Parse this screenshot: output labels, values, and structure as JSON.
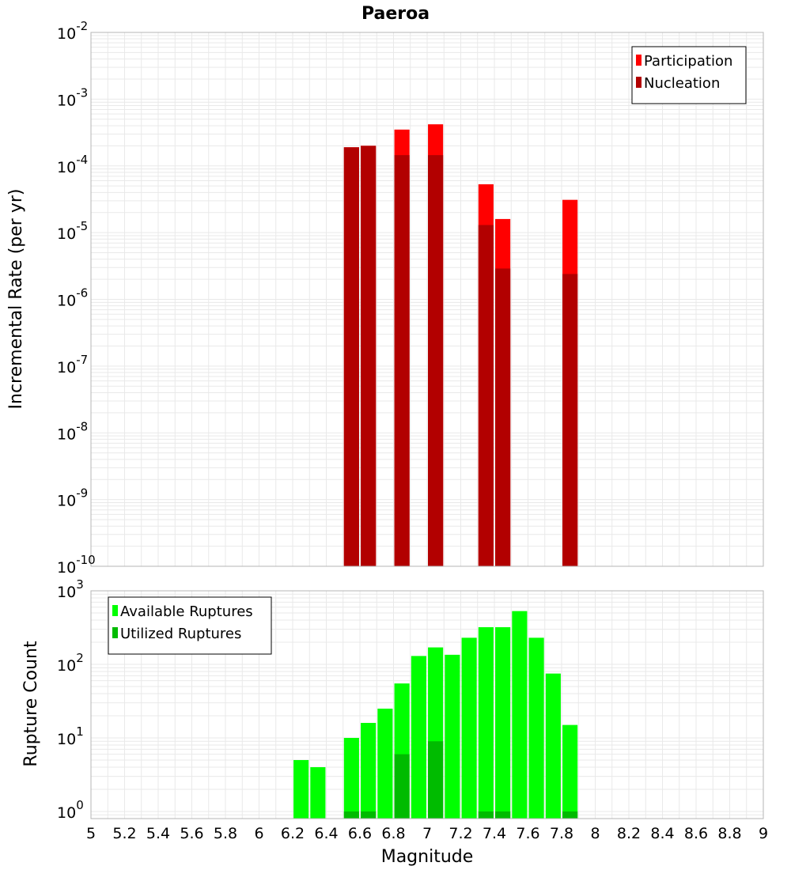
{
  "title": "Paeroa",
  "colors": {
    "participation": "#ff0000",
    "nucleation": "#b20000",
    "available": "#00ff00",
    "utilized": "#00bb00"
  },
  "chart_data": [
    {
      "type": "bar",
      "title": "Paeroa",
      "xlabel": "Magnitude",
      "ylabel": "Incremental Rate (per yr)",
      "xlim": [
        5,
        9
      ],
      "ylim": [
        1e-10,
        0.01
      ],
      "yscale": "log",
      "grid": true,
      "legend_position": "top-right",
      "bar_width": 0.09,
      "x": [
        6.55,
        6.65,
        6.85,
        7.05,
        7.35,
        7.45,
        7.85
      ],
      "series": [
        {
          "name": "Participation",
          "color": "#ff0000",
          "values": [
            0.00019,
            0.0002,
            0.00035,
            0.00042,
            5.3e-05,
            1.6e-05,
            3.1e-05
          ]
        },
        {
          "name": "Nucleation",
          "color": "#b20000",
          "values": [
            0.00019,
            0.0002,
            0.000145,
            0.000145,
            1.3e-05,
            2.9e-06,
            2.4e-06
          ]
        }
      ]
    },
    {
      "type": "bar",
      "xlabel": "Magnitude",
      "ylabel": "Rupture Count",
      "xlim": [
        5,
        9
      ],
      "ylim": [
        0.8,
        1000
      ],
      "yscale": "log",
      "grid": true,
      "legend_position": "top-left",
      "bar_width": 0.09,
      "x": [
        6.25,
        6.35,
        6.55,
        6.65,
        6.75,
        6.85,
        6.95,
        7.05,
        7.15,
        7.25,
        7.35,
        7.45,
        7.55,
        7.65,
        7.75,
        7.85
      ],
      "series": [
        {
          "name": "Available Ruptures",
          "color": "#00ff00",
          "values": [
            5,
            4,
            10,
            16,
            25,
            55,
            130,
            170,
            135,
            230,
            320,
            320,
            530,
            230,
            75,
            15
          ]
        },
        {
          "name": "Utilized Ruptures",
          "color": "#00bb00",
          "values": [
            0,
            0,
            1,
            1,
            0,
            6,
            0,
            9,
            0,
            0,
            1,
            1,
            0,
            0,
            0,
            1
          ]
        }
      ]
    }
  ],
  "x_ticks": [
    "5",
    "5.2",
    "5.4",
    "5.6",
    "5.8",
    "6",
    "6.2",
    "6.4",
    "6.6",
    "6.8",
    "7",
    "7.2",
    "7.4",
    "7.6",
    "7.8",
    "8",
    "8.2",
    "8.4",
    "8.6",
    "8.8",
    "9"
  ],
  "top_y_ticks": [
    {
      "base": "10",
      "exp": "-2"
    },
    {
      "base": "10",
      "exp": "-3"
    },
    {
      "base": "10",
      "exp": "-4"
    },
    {
      "base": "10",
      "exp": "-5"
    },
    {
      "base": "10",
      "exp": "-6"
    },
    {
      "base": "10",
      "exp": "-7"
    },
    {
      "base": "10",
      "exp": "-8"
    },
    {
      "base": "10",
      "exp": "-9"
    },
    {
      "base": "10",
      "exp": "-10"
    }
  ],
  "bottom_y_ticks": [
    {
      "base": "10",
      "exp": "3"
    },
    {
      "base": "10",
      "exp": "2"
    },
    {
      "base": "10",
      "exp": "1"
    },
    {
      "base": "10",
      "exp": "0"
    }
  ]
}
